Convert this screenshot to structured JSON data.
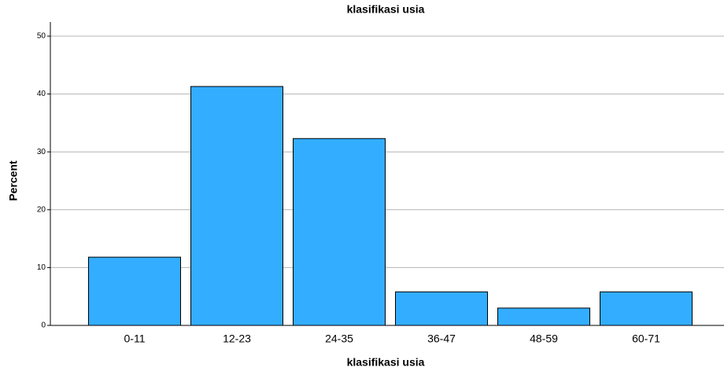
{
  "chart_data": {
    "type": "bar",
    "title": "klasifikasi usia",
    "xlabel": "klasifikasi usia",
    "ylabel": "Percent",
    "categories": [
      "0-11",
      "12-23",
      "24-35",
      "36-47",
      "48-59",
      "60-71"
    ],
    "values": [
      11.8,
      41.3,
      32.3,
      5.8,
      3.0,
      5.8
    ],
    "color": "#33adff",
    "ylim": [
      0,
      50
    ],
    "yticks": [
      0,
      10,
      20,
      30,
      40,
      50
    ],
    "grid": true
  }
}
